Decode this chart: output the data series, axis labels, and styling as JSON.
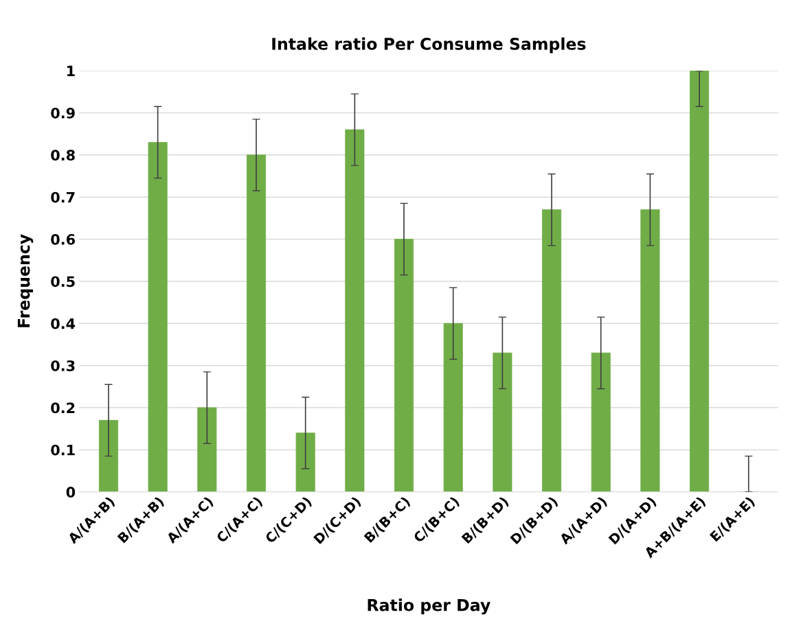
{
  "chart_data": {
    "type": "bar",
    "title": "Intake ratio Per Consume Samples",
    "xlabel": "Ratio per Day",
    "ylabel": "Frequency",
    "categories": [
      "A/(A+B)",
      "B/(A+B)",
      "A/(A+C)",
      "C/(A+C)",
      "C/(C+D)",
      "D/(C+D)",
      "B/(B+C)",
      "C/(B+C)",
      "B/(B+D)",
      "D/(B+D)",
      "A/(A+D)",
      "D/(A+D)",
      "A+B/(A+E)",
      "E/(A+E)"
    ],
    "values": [
      0.17,
      0.83,
      0.2,
      0.8,
      0.14,
      0.86,
      0.6,
      0.4,
      0.33,
      0.67,
      0.33,
      0.67,
      1,
      0
    ],
    "errors": [
      0.085,
      0.085,
      0.085,
      0.085,
      0.085,
      0.085,
      0.085,
      0.085,
      0.085,
      0.085,
      0.085,
      0.085,
      [
        0.915,
        1
      ],
      [
        0,
        0.085
      ]
    ],
    "color": "#70ad47",
    "ylim": [
      0,
      1
    ],
    "yticks": [
      0,
      0.1,
      0.2,
      0.3,
      0.4,
      0.5,
      0.6,
      0.7,
      0.8,
      0.9,
      1
    ],
    "grid": "y"
  }
}
